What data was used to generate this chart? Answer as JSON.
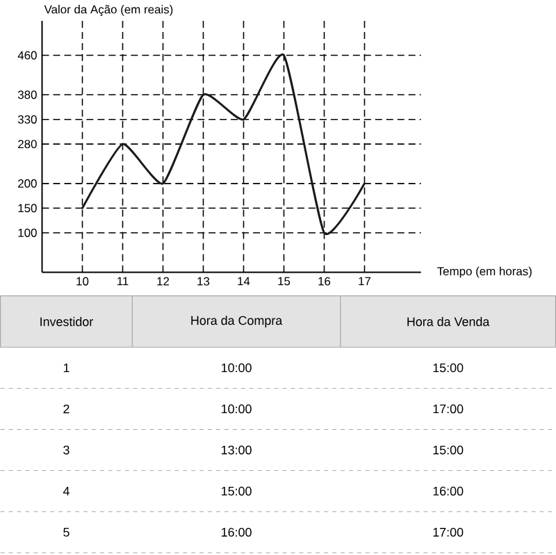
{
  "chart_data": {
    "type": "line",
    "xlabel": "Tempo (em horas)",
    "ylabel": "Valor da Ação (em reais)",
    "x": [
      10,
      11,
      12,
      13,
      14,
      15,
      16,
      17
    ],
    "values": [
      150,
      280,
      200,
      380,
      330,
      460,
      100,
      200
    ],
    "color": "#1a1a1a",
    "line_style": "solid",
    "grid": true,
    "xlim": [
      9,
      18.4
    ],
    "ylim": [
      20,
      530
    ],
    "xticks": [
      10,
      11,
      12,
      13,
      14,
      15,
      16,
      17
    ],
    "yticks": [
      100,
      150,
      200,
      280,
      330,
      380,
      460
    ],
    "annotations": [
      "Investidor",
      "Hora da Compra",
      "Hora da Venda",
      "1",
      "10:00",
      "15:00",
      "2",
      "10:00",
      "17:00",
      "3",
      "13:00",
      "15:00",
      "4",
      "15:00",
      "16:00",
      "5",
      "16:00",
      "17:00"
    ]
  }
}
